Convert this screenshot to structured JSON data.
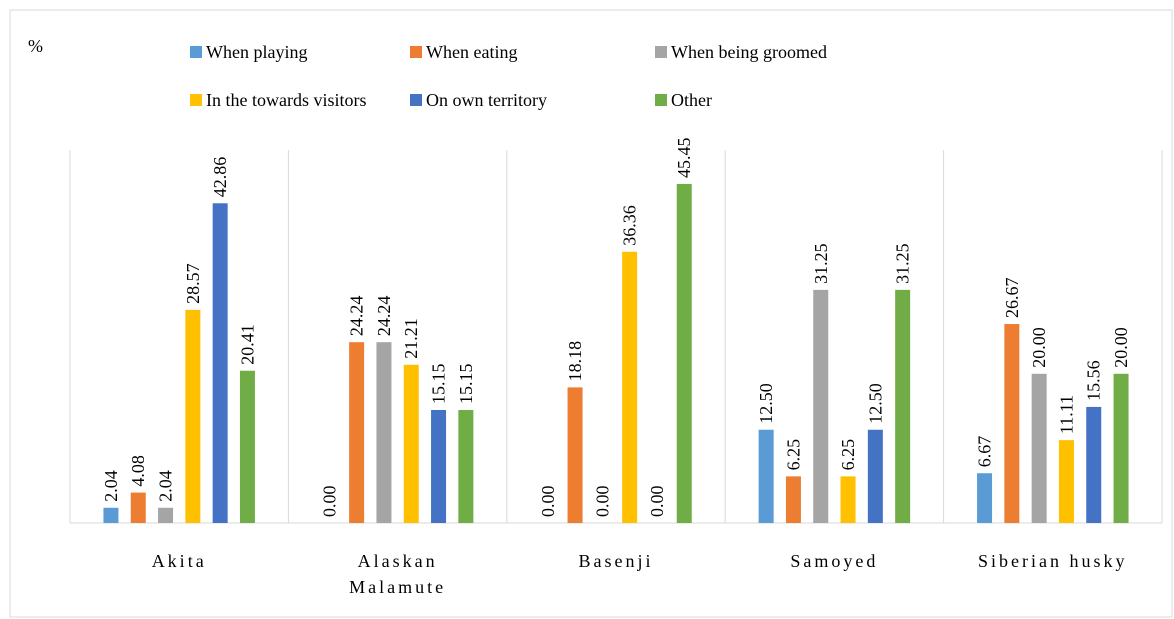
{
  "chart_data": {
    "type": "bar",
    "y_label": "%",
    "categories": [
      "Akita",
      "Alaskan Malamute",
      "Basenji",
      "Samoyed",
      "Siberian husky"
    ],
    "ylim": [
      0,
      50
    ],
    "series": [
      {
        "name": "When playing",
        "color": "#5b9bd5",
        "values": [
          2.04,
          0,
          0,
          12.5,
          6.67
        ],
        "value_labels": [
          "2.04",
          "0.00",
          "0.00",
          "12.50",
          "6.67"
        ]
      },
      {
        "name": "When eating",
        "color": "#ed7d31",
        "values": [
          4.08,
          24.24,
          18.18,
          6.25,
          26.67
        ],
        "value_labels": [
          "4.08",
          "24.24",
          "18.18",
          "6.25",
          "26.67"
        ]
      },
      {
        "name": "When being groomed",
        "color": "#a5a5a5",
        "values": [
          2.04,
          24.24,
          0,
          31.25,
          20
        ],
        "value_labels": [
          "2.04",
          "24.24",
          "0.00",
          "31.25",
          "20.00"
        ]
      },
      {
        "name": "In the towards visitors",
        "color": "#ffc000",
        "values": [
          28.57,
          21.21,
          36.36,
          6.25,
          11.11
        ],
        "value_labels": [
          "28.57",
          "21.21",
          "36.36",
          "6.25",
          "11.11"
        ]
      },
      {
        "name": "On own territory",
        "color": "#4472c4",
        "values": [
          42.86,
          15.15,
          0,
          12.5,
          15.56
        ],
        "value_labels": [
          "42.86",
          "15.15",
          "0.00",
          "12.50",
          "15.56"
        ]
      },
      {
        "name": "Other",
        "color": "#70ad47",
        "values": [
          20.41,
          15.15,
          45.45,
          31.25,
          20
        ],
        "value_labels": [
          "20.41",
          "15.15",
          "45.45",
          "31.25",
          "20.00"
        ]
      }
    ]
  }
}
